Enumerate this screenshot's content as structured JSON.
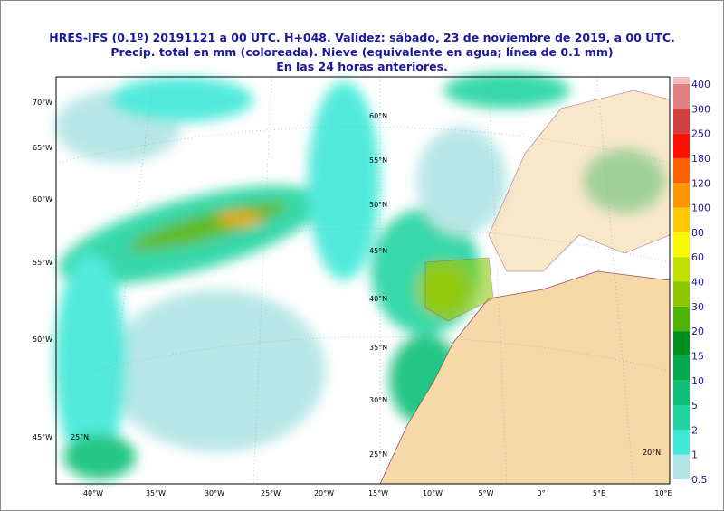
{
  "header": {
    "lines": [
      "HRES-IFS (0.1º) 20191121 a 00 UTC.  H+048. Validez: sábado, 23 de noviembre de 2019,  a  00 UTC.",
      "Precip. total en mm (coloreada). Nieve (equivalente en agua; línea de 0.1 mm)",
      "En las 24 horas anteriores."
    ]
  },
  "bottom_labels": [
    "40°W",
    "35°W",
    "30°W",
    "25°W",
    "20°W",
    "15°W",
    "10°W",
    "5°W",
    "0°",
    "5°E",
    "10°E"
  ],
  "left_labels": [
    "70°W",
    "65°W",
    "60°W",
    "55°W",
    "50°W",
    "45°W"
  ],
  "map_labels": [
    "60°N",
    "55°N",
    "50°N",
    "45°N",
    "40°N",
    "35°N",
    "30°N",
    "25°N",
    "25°N",
    "20°N"
  ],
  "colorbar": {
    "labels": [
      0.5,
      1,
      2,
      5,
      10,
      15,
      20,
      30,
      40,
      60,
      80,
      100,
      120,
      180,
      250,
      300,
      400
    ],
    "colors": [
      "#b0e4e4",
      "#40e8d8",
      "#20d4a0",
      "#10c078",
      "#00a850",
      "#009020",
      "#50b400",
      "#8cc800",
      "#c0e000",
      "#f8f800",
      "#ffc800",
      "#ff9800",
      "#ff6000",
      "#ff1000",
      "#d04040",
      "#e08080",
      "#f0c0c0"
    ]
  }
}
